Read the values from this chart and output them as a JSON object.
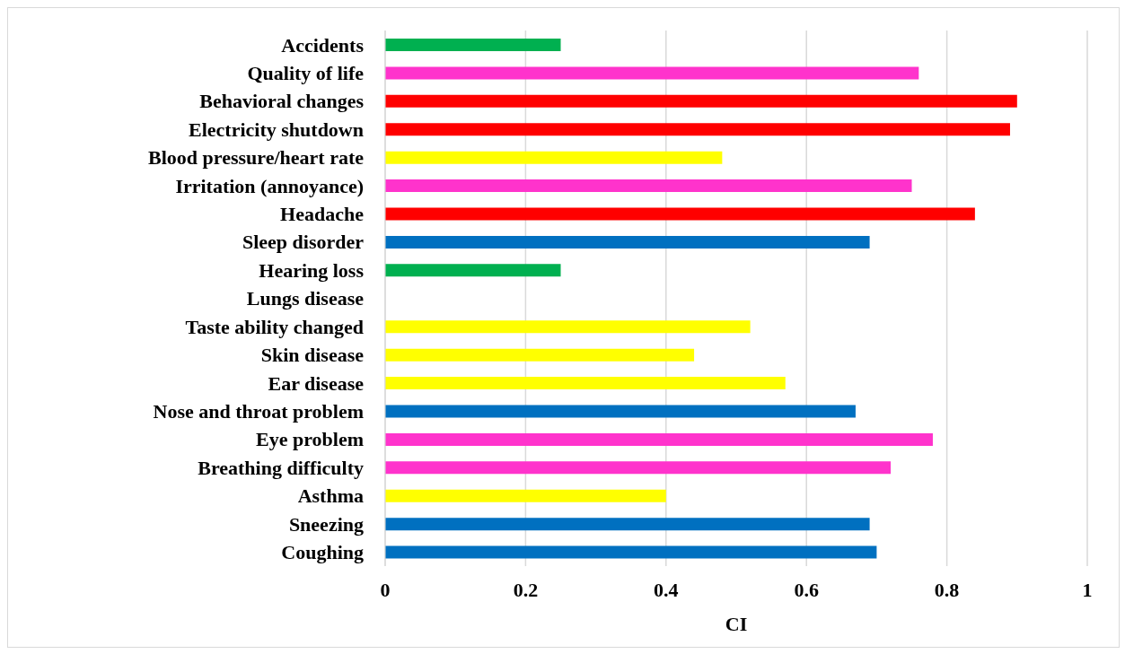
{
  "chart_data": {
    "type": "bar",
    "orientation": "horizontal",
    "xlabel": "CI",
    "categories": [
      "Accidents",
      "Quality of life",
      "Behavioral changes",
      "Electricity shutdown",
      "Blood pressure/heart rate",
      "Irritation (annoyance)",
      "Headache",
      "Sleep disorder",
      "Hearing loss",
      "Lungs disease",
      "Taste ability changed",
      "Skin disease",
      "Ear disease",
      "Nose and throat problem",
      "Eye problem",
      "Breathing difficulty",
      "Asthma",
      "Sneezing",
      "Coughing"
    ],
    "values": [
      0.25,
      0.76,
      0.9,
      0.89,
      0.48,
      0.75,
      0.84,
      0.69,
      0.25,
      0,
      0.52,
      0.44,
      0.57,
      0.67,
      0.78,
      0.72,
      0.4,
      0.69,
      0.7
    ],
    "colors": [
      "#00b050",
      "#ff33cc",
      "#ff0000",
      "#ff0000",
      "#ffff00",
      "#ff33cc",
      "#ff0000",
      "#0070c0",
      "#00b050",
      "#0070c0",
      "#ffff00",
      "#ffff00",
      "#ffff00",
      "#0070c0",
      "#ff33cc",
      "#ff33cc",
      "#ffff00",
      "#0070c0",
      "#0070c0"
    ],
    "xlim": [
      0,
      1
    ],
    "xticks": [
      0,
      0.2,
      0.4,
      0.6,
      0.8,
      1
    ],
    "grid": "x"
  }
}
